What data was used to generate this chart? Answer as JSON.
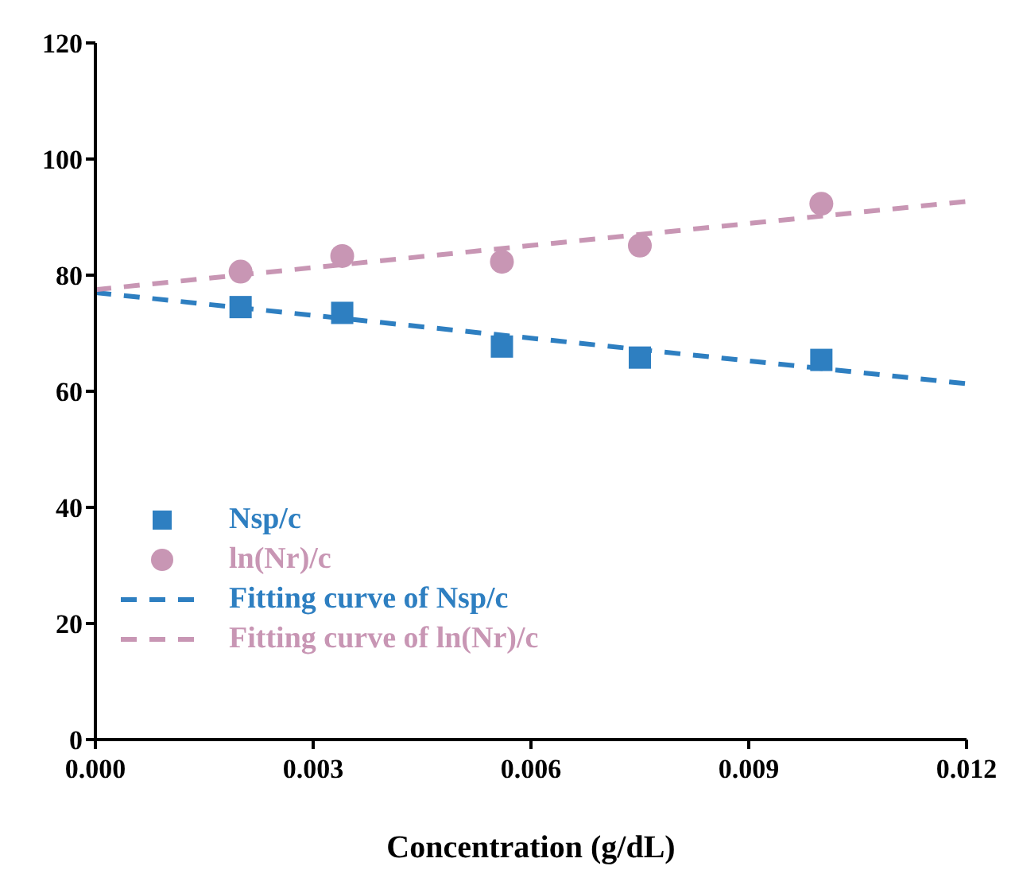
{
  "chart_data": {
    "type": "scatter",
    "xlabel": "Concentration (g/dL)",
    "xlim": [
      0,
      0.012
    ],
    "xticks": [
      {
        "value": 0,
        "label": "0.000"
      },
      {
        "value": 0.003,
        "label": "0.003"
      },
      {
        "value": 0.006,
        "label": "0.006"
      },
      {
        "value": 0.009,
        "label": "0.009"
      },
      {
        "value": 0.012,
        "label": "0.012"
      }
    ],
    "ylim": [
      0,
      120
    ],
    "yticks": [
      0,
      20,
      40,
      60,
      80,
      100,
      120
    ],
    "grid": false,
    "legend": "bottom left",
    "series": [
      {
        "name": "Nsp/c",
        "marker": "square",
        "color": "#2e7fc1",
        "x": [
          0.002,
          0.0034,
          0.0056,
          0.0075,
          0.01
        ],
        "values": [
          74.5,
          73.5,
          67.7,
          65.8,
          65.4
        ]
      },
      {
        "name": "ln(Nr)/c",
        "marker": "circle",
        "color": "#c896b4",
        "x": [
          0.002,
          0.0034,
          0.0056,
          0.0075,
          0.01
        ],
        "values": [
          80.6,
          83.3,
          82.3,
          85.1,
          92.3
        ]
      },
      {
        "name": "Fitting curve of Nsp/c",
        "type": "line",
        "line_style": "dashed",
        "color": "#2e7fc1",
        "x": [
          0,
          0.012
        ],
        "values": [
          77,
          61.3
        ]
      },
      {
        "name": "Fitting curve of ln(Nr)/c",
        "type": "line",
        "line_style": "dashed",
        "color": "#c896b4",
        "x": [
          0,
          0.012
        ],
        "values": [
          77.5,
          92.7
        ]
      }
    ]
  }
}
